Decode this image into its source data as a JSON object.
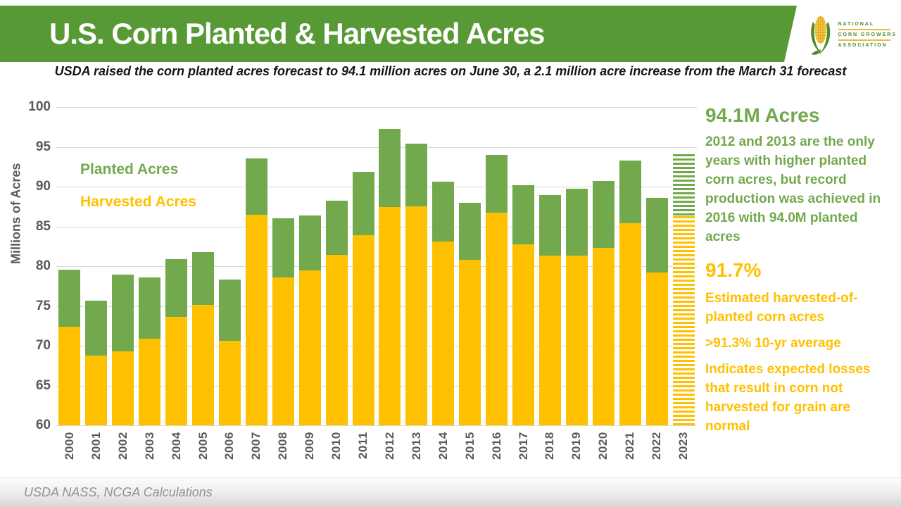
{
  "header": {
    "title": "U.S. Corn Planted & Harvested Acres"
  },
  "logo": {
    "line1": "NATIONAL",
    "line2": "CORN GROWERS",
    "line3": "ASSOCIATION"
  },
  "subtitle": "USDA raised the corn planted acres forecast to 94.1 million acres on June 30, a 2.1 million acre increase from the March 31 forecast",
  "sidebar": {
    "acres_headline": "94.1M Acres",
    "acres_body": "2012 and 2013 are the only years with higher planted corn acres, but record production was achieved in 2016 with 94.0M planted acres",
    "pct_headline": "91.7%",
    "pct_body_1": "Estimated harvested-of-planted corn acres",
    "pct_body_2": ">91.3% 10-yr average",
    "pct_body_3": "Indicates expected losses that result in corn not harvested for grain are normal"
  },
  "footer": {
    "source": "USDA NASS, NCGA Calculations"
  },
  "colors": {
    "banner_green": "#579A35",
    "bar_green": "#72A94C",
    "bar_yellow": "#FFC000",
    "axis_text": "#595959",
    "gridline": "#D9D9D9",
    "logo_green": "#4E8A2E",
    "logo_gold": "#EDBA3F"
  },
  "chart_data": {
    "type": "bar",
    "ylabel": "Millions of Acres",
    "ylim": [
      60,
      100
    ],
    "ytick_step": 5,
    "grid": true,
    "legend_position": "inside-top-left",
    "categories": [
      "2000",
      "2001",
      "2002",
      "2003",
      "2004",
      "2005",
      "2006",
      "2007",
      "2008",
      "2009",
      "2010",
      "2011",
      "2012",
      "2013",
      "2014",
      "2015",
      "2016",
      "2017",
      "2018",
      "2019",
      "2020",
      "2021",
      "2022",
      "2023"
    ],
    "series": [
      {
        "name": "Planted Acres",
        "color": "#72A94C",
        "values": [
          79.6,
          75.7,
          78.9,
          78.6,
          80.9,
          81.8,
          78.3,
          93.5,
          86.0,
          86.4,
          88.2,
          91.9,
          97.3,
          95.4,
          90.6,
          88.0,
          94.0,
          90.2,
          88.9,
          89.7,
          90.7,
          93.3,
          88.6,
          94.1
        ]
      },
      {
        "name": "Harvested Acres",
        "color": "#FFC000",
        "values": [
          72.4,
          68.8,
          69.3,
          70.9,
          73.6,
          75.1,
          70.6,
          86.5,
          78.6,
          79.5,
          81.4,
          83.9,
          87.4,
          87.5,
          83.1,
          80.8,
          86.7,
          82.7,
          81.3,
          81.3,
          82.3,
          85.4,
          79.2,
          86.3
        ]
      }
    ],
    "hatched_category": "2023"
  }
}
